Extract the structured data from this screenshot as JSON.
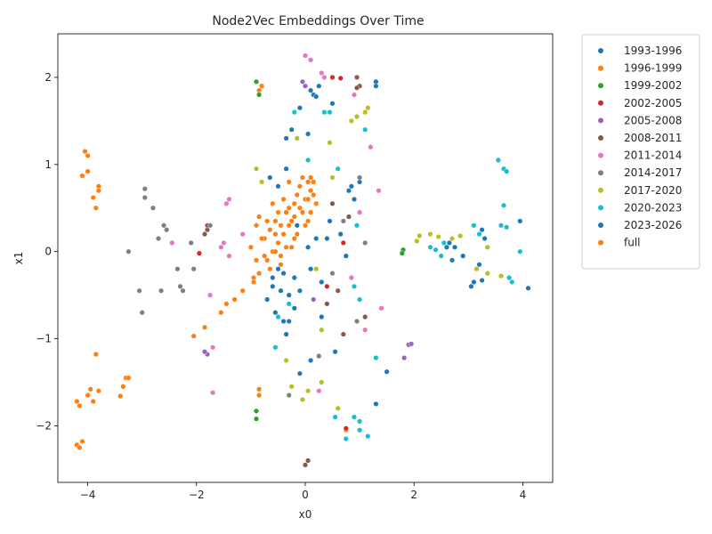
{
  "chart_data": {
    "type": "scatter",
    "title": "Node2Vec Embeddings Over Time",
    "xlabel": "x0",
    "ylabel": "x1",
    "xlim": [
      -4.55,
      4.55
    ],
    "ylim": [
      -2.65,
      2.5
    ],
    "xticks": [
      -4,
      -2,
      0,
      2,
      4
    ],
    "yticks": [
      -2,
      -1,
      0,
      1,
      2
    ],
    "grid": false,
    "legend_position": "outside-right",
    "series": [
      {
        "name": "1993-1996",
        "color": "#1f77b4",
        "points": [
          [
            -0.45,
            -0.45
          ],
          [
            -0.55,
            -0.7
          ],
          [
            -0.3,
            -0.5
          ],
          [
            -0.6,
            -0.3
          ],
          [
            -0.4,
            -0.8
          ],
          [
            -0.2,
            -0.65
          ],
          [
            -0.5,
            -0.2
          ],
          [
            -0.1,
            -0.45
          ],
          [
            -0.7,
            -0.55
          ],
          [
            -0.35,
            -0.95
          ],
          [
            -0.15,
            0.3
          ],
          [
            0.1,
            -0.2
          ],
          [
            0.2,
            0.15
          ],
          [
            0.05,
            0.05
          ],
          [
            0.3,
            -0.35
          ],
          [
            -0.25,
            1.4
          ],
          [
            -0.1,
            1.65
          ],
          [
            -0.35,
            1.3
          ],
          [
            0.1,
            1.85
          ],
          [
            0.15,
            1.8
          ],
          [
            0.85,
            0.75
          ],
          [
            0.9,
            0.6
          ],
          [
            1.0,
            0.8
          ],
          [
            1.3,
            1.95
          ],
          [
            1.3,
            1.9
          ],
          [
            1.3,
            -1.75
          ],
          [
            1.5,
            -1.38
          ],
          [
            3.25,
            0.25
          ],
          [
            3.3,
            0.15
          ],
          [
            3.05,
            -0.4
          ],
          [
            3.1,
            -0.35
          ],
          [
            3.95,
            0.35
          ],
          [
            4.1,
            -0.42
          ],
          [
            0.5,
            1.7
          ],
          [
            0.75,
            -0.05
          ],
          [
            0.45,
            0.35
          ]
        ]
      },
      {
        "name": "1996-1999",
        "color": "#ff7f0e",
        "points": [
          [
            -4.05,
            1.15
          ],
          [
            -4.0,
            1.1
          ],
          [
            -4.1,
            0.87
          ],
          [
            -4.0,
            0.92
          ],
          [
            -3.9,
            0.62
          ],
          [
            -3.85,
            0.5
          ],
          [
            -3.8,
            0.75
          ],
          [
            -3.8,
            0.7
          ],
          [
            -4.2,
            -1.72
          ],
          [
            -4.15,
            -1.77
          ],
          [
            -4.0,
            -1.65
          ],
          [
            -3.95,
            -1.58
          ],
          [
            -3.85,
            -1.18
          ],
          [
            -3.8,
            -1.6
          ],
          [
            -3.9,
            -1.72
          ],
          [
            -3.3,
            -1.45
          ],
          [
            -3.35,
            -1.55
          ],
          [
            -3.4,
            -1.66
          ],
          [
            -3.25,
            -1.45
          ],
          [
            -4.2,
            -2.22
          ],
          [
            -4.15,
            -2.25
          ],
          [
            -4.1,
            -2.18
          ],
          [
            -2.05,
            -0.97
          ],
          [
            -1.85,
            -0.87
          ],
          [
            -1.55,
            -0.7
          ],
          [
            -1.45,
            -0.6
          ],
          [
            -1.3,
            -0.55
          ],
          [
            -1.15,
            -0.45
          ],
          [
            -0.95,
            -0.35
          ],
          [
            -0.85,
            -0.25
          ],
          [
            -0.7,
            -0.1
          ],
          [
            -0.6,
            0.0
          ],
          [
            -0.5,
            0.1
          ],
          [
            -0.4,
            0.2
          ],
          [
            -0.3,
            0.3
          ],
          [
            -0.2,
            0.4
          ],
          [
            -0.1,
            0.5
          ],
          [
            0.0,
            0.6
          ],
          [
            0.1,
            0.7
          ],
          [
            0.15,
            0.8
          ],
          [
            -0.55,
            0.35
          ],
          [
            -0.45,
            -0.05
          ],
          [
            -0.65,
            0.25
          ],
          [
            -0.25,
            0.05
          ],
          [
            -0.35,
            0.45
          ],
          [
            0.05,
            0.35
          ],
          [
            -0.15,
            0.65
          ],
          [
            -0.05,
            0.85
          ],
          [
            -0.75,
            0.15
          ],
          [
            -0.9,
            -0.1
          ],
          [
            -0.85,
            0.4
          ],
          [
            -0.8,
            1.9
          ],
          [
            -0.85,
            1.85
          ],
          [
            -0.85,
            -1.58
          ],
          [
            -0.85,
            -1.65
          ],
          [
            0.75,
            -2.05
          ]
        ]
      },
      {
        "name": "1999-2002",
        "color": "#2ca02c",
        "points": [
          [
            -0.9,
            1.95
          ],
          [
            -0.85,
            1.8
          ],
          [
            -0.9,
            -1.83
          ],
          [
            -0.9,
            -1.92
          ],
          [
            1.8,
            0.02
          ],
          [
            1.78,
            -0.02
          ]
        ]
      },
      {
        "name": "2002-2005",
        "color": "#d62728",
        "points": [
          [
            0.5,
            2.0
          ],
          [
            0.65,
            1.99
          ],
          [
            0.75,
            -2.03
          ],
          [
            -1.95,
            -0.02
          ],
          [
            0.7,
            0.1
          ],
          [
            0.4,
            -0.4
          ]
        ]
      },
      {
        "name": "2005-2008",
        "color": "#9467bd",
        "points": [
          [
            -0.05,
            1.95
          ],
          [
            0.0,
            1.9
          ],
          [
            -1.8,
            -1.18
          ],
          [
            -1.85,
            -1.15
          ],
          [
            1.9,
            -1.07
          ],
          [
            1.95,
            -1.06
          ],
          [
            1.82,
            -1.22
          ],
          [
            0.15,
            -0.55
          ]
        ]
      },
      {
        "name": "2008-2011",
        "color": "#8c564b",
        "points": [
          [
            -1.8,
            0.25
          ],
          [
            -1.85,
            0.2
          ],
          [
            -1.8,
            0.3
          ],
          [
            0.05,
            -2.4
          ],
          [
            0.0,
            -2.45
          ],
          [
            0.95,
            2.0
          ],
          [
            1.0,
            1.9
          ],
          [
            0.95,
            1.88
          ],
          [
            0.8,
            0.4
          ],
          [
            0.6,
            -0.45
          ],
          [
            0.7,
            -0.95
          ],
          [
            1.1,
            -0.75
          ],
          [
            0.5,
            0.55
          ],
          [
            0.4,
            -0.6
          ]
        ]
      },
      {
        "name": "2011-2014",
        "color": "#e377c2",
        "points": [
          [
            0.0,
            2.25
          ],
          [
            0.1,
            2.2
          ],
          [
            0.3,
            2.05
          ],
          [
            0.35,
            2.0
          ],
          [
            -1.5,
            0.1
          ],
          [
            -1.55,
            0.05
          ],
          [
            -1.4,
            -0.05
          ],
          [
            -1.45,
            0.55
          ],
          [
            -1.4,
            0.6
          ],
          [
            -1.7,
            -1.1
          ],
          [
            -1.7,
            -1.62
          ],
          [
            -1.75,
            -0.5
          ],
          [
            -2.45,
            0.1
          ],
          [
            1.2,
            1.2
          ],
          [
            1.35,
            0.7
          ],
          [
            1.4,
            -0.65
          ],
          [
            1.1,
            -0.9
          ],
          [
            0.25,
            -1.6
          ],
          [
            0.9,
            1.8
          ],
          [
            -1.15,
            0.2
          ],
          [
            1.0,
            0.45
          ],
          [
            0.85,
            -0.3
          ]
        ]
      },
      {
        "name": "2014-2017",
        "color": "#7f7f7f",
        "points": [
          [
            -2.95,
            0.72
          ],
          [
            -2.95,
            0.62
          ],
          [
            -2.8,
            0.5
          ],
          [
            -2.6,
            0.3
          ],
          [
            -2.55,
            0.25
          ],
          [
            -2.7,
            0.15
          ],
          [
            -2.65,
            -0.45
          ],
          [
            -3.05,
            -0.45
          ],
          [
            -3.0,
            -0.7
          ],
          [
            -3.25,
            0.0
          ],
          [
            -2.3,
            -0.4
          ],
          [
            -2.25,
            -0.45
          ],
          [
            -2.35,
            -0.2
          ],
          [
            -2.05,
            -0.2
          ],
          [
            -2.1,
            0.1
          ],
          [
            -1.75,
            0.3
          ],
          [
            1.0,
            0.85
          ],
          [
            1.1,
            0.1
          ],
          [
            0.95,
            -0.8
          ],
          [
            0.5,
            -0.25
          ],
          [
            0.7,
            0.35
          ],
          [
            -0.3,
            -1.65
          ],
          [
            0.25,
            -1.2
          ]
        ]
      },
      {
        "name": "2017-2020",
        "color": "#bcbd22",
        "points": [
          [
            2.1,
            0.18
          ],
          [
            2.05,
            0.12
          ],
          [
            2.3,
            0.2
          ],
          [
            2.45,
            0.17
          ],
          [
            2.55,
            0.1
          ],
          [
            2.7,
            0.15
          ],
          [
            2.85,
            0.18
          ],
          [
            3.15,
            -0.2
          ],
          [
            3.35,
            -0.25
          ],
          [
            3.35,
            0.05
          ],
          [
            3.6,
            -0.28
          ],
          [
            0.95,
            1.55
          ],
          [
            1.1,
            1.6
          ],
          [
            1.15,
            1.65
          ],
          [
            0.45,
            1.25
          ],
          [
            0.05,
            -1.6
          ],
          [
            -0.05,
            -1.7
          ],
          [
            -0.25,
            -1.55
          ],
          [
            0.3,
            -1.5
          ],
          [
            -0.35,
            -1.25
          ],
          [
            0.6,
            -1.8
          ],
          [
            -0.9,
            0.95
          ],
          [
            -0.8,
            0.8
          ],
          [
            0.3,
            -0.9
          ],
          [
            0.5,
            0.85
          ],
          [
            0.2,
            -0.2
          ],
          [
            -0.15,
            1.3
          ],
          [
            0.85,
            1.5
          ]
        ]
      },
      {
        "name": "2020-2023",
        "color": "#17becf",
        "points": [
          [
            2.3,
            0.05
          ],
          [
            2.4,
            0.02
          ],
          [
            2.5,
            -0.05
          ],
          [
            2.55,
            0.1
          ],
          [
            3.1,
            0.3
          ],
          [
            3.2,
            0.2
          ],
          [
            3.55,
            1.05
          ],
          [
            3.65,
            0.95
          ],
          [
            3.7,
            0.92
          ],
          [
            3.6,
            0.3
          ],
          [
            3.7,
            0.28
          ],
          [
            3.75,
            -0.3
          ],
          [
            3.8,
            -0.35
          ],
          [
            3.95,
            0.0
          ],
          [
            3.65,
            0.53
          ],
          [
            0.9,
            -1.9
          ],
          [
            1.0,
            -1.95
          ],
          [
            1.0,
            -2.05
          ],
          [
            1.15,
            -2.12
          ],
          [
            0.75,
            -2.15
          ],
          [
            0.55,
            -1.9
          ],
          [
            0.45,
            1.6
          ],
          [
            0.35,
            1.6
          ],
          [
            -0.2,
            1.6
          ],
          [
            1.3,
            -1.22
          ],
          [
            0.9,
            -0.4
          ],
          [
            1.0,
            -0.55
          ],
          [
            0.6,
            0.95
          ],
          [
            -0.5,
            -0.75
          ],
          [
            -0.3,
            -0.6
          ],
          [
            0.95,
            0.3
          ],
          [
            1.1,
            1.4
          ],
          [
            0.05,
            1.05
          ],
          [
            -0.55,
            -1.1
          ]
        ]
      },
      {
        "name": "2023-2026",
        "color": "#1f77b4",
        "points": [
          [
            2.6,
            0.05
          ],
          [
            2.7,
            -0.1
          ],
          [
            2.75,
            0.05
          ],
          [
            2.9,
            -0.05
          ],
          [
            2.65,
            0.1
          ],
          [
            3.2,
            -0.15
          ],
          [
            3.25,
            -0.33
          ],
          [
            -0.6,
            -0.4
          ],
          [
            -0.4,
            -0.25
          ],
          [
            -0.3,
            -0.8
          ],
          [
            -0.2,
            -0.3
          ],
          [
            0.3,
            -0.75
          ],
          [
            0.8,
            0.7
          ],
          [
            0.65,
            0.2
          ],
          [
            0.4,
            0.15
          ],
          [
            -0.5,
            0.75
          ],
          [
            -0.35,
            0.95
          ],
          [
            -0.65,
            0.85
          ],
          [
            0.1,
            -1.25
          ],
          [
            -0.1,
            -1.4
          ],
          [
            0.55,
            -1.15
          ],
          [
            0.2,
            1.78
          ],
          [
            0.25,
            1.9
          ],
          [
            0.05,
            1.35
          ]
        ]
      },
      {
        "name": "full",
        "color": "#ff7f0e",
        "points": [
          [
            -0.7,
            0.35
          ],
          [
            -0.6,
            0.55
          ],
          [
            -0.55,
            0.2
          ],
          [
            -0.5,
            0.45
          ],
          [
            -0.45,
            0.3
          ],
          [
            -0.4,
            0.6
          ],
          [
            -0.35,
            0.05
          ],
          [
            -0.3,
            0.5
          ],
          [
            -0.25,
            0.35
          ],
          [
            -0.2,
            0.55
          ],
          [
            -0.15,
            0.2
          ],
          [
            -0.1,
            0.75
          ],
          [
            -0.05,
            0.45
          ],
          [
            0.0,
            0.3
          ],
          [
            0.05,
            0.6
          ],
          [
            0.1,
            0.45
          ],
          [
            0.15,
            0.65
          ],
          [
            0.2,
            0.55
          ],
          [
            -0.75,
            -0.05
          ],
          [
            -0.8,
            0.15
          ],
          [
            -0.65,
            -0.2
          ],
          [
            -0.55,
            0.0
          ],
          [
            -0.45,
            -0.15
          ],
          [
            -0.95,
            -0.3
          ],
          [
            -1.0,
            0.05
          ],
          [
            -0.9,
            0.3
          ],
          [
            -0.3,
            0.8
          ],
          [
            -0.2,
            0.15
          ],
          [
            0.05,
            0.8
          ],
          [
            0.1,
            0.85
          ]
        ]
      }
    ]
  }
}
